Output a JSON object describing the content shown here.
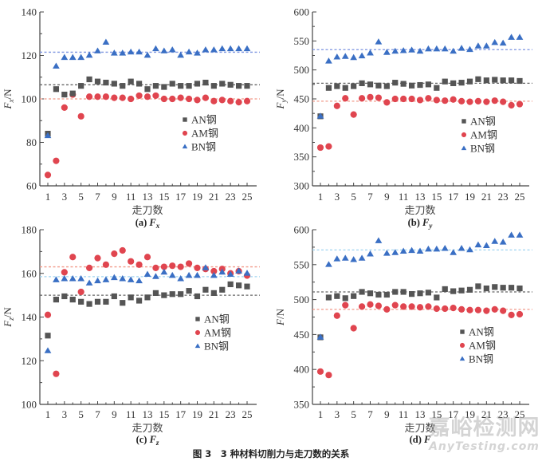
{
  "figure_caption": "图 3　3 种材料切削力与走刀数的关系",
  "watermark": {
    "cn": "嘉峪检测网",
    "en": "AnyTesting.com"
  },
  "colors": {
    "AN": "#555555",
    "AM": "#e0454f",
    "BN": "#3a6fc4",
    "AN_line": "#666666",
    "AM_line": "#f29a8a",
    "BN_line_ab": "#7b93e0",
    "BN_line_cd": "#9fd4f0"
  },
  "legend": [
    {
      "key": "AN",
      "label": "AN钢",
      "marker": "square"
    },
    {
      "key": "AM",
      "label": "AM钢",
      "marker": "circle"
    },
    {
      "key": "BN",
      "label": "BN钢",
      "marker": "triangle"
    }
  ],
  "chart_data": [
    {
      "id": "a",
      "type": "scatter",
      "sub_caption": "(a) F",
      "sub_caption_sub": "x",
      "xlabel": "走刀数",
      "ylabel": "F",
      "ylabel_sub": "x",
      "ylabel_unit": "/N",
      "ylim": [
        60,
        140
      ],
      "yticks": [
        60,
        80,
        100,
        120,
        140
      ],
      "xlim": [
        1,
        25
      ],
      "xticks": [
        1,
        3,
        5,
        7,
        9,
        11,
        13,
        15,
        17,
        19,
        21,
        23,
        25
      ],
      "legend_position": "middle-right",
      "grid": false,
      "series": [
        {
          "name": "AN钢",
          "key": "AN",
          "mean": 106.5,
          "values": [
            84,
            104.5,
            102,
            102.5,
            106,
            109,
            108,
            107.5,
            107,
            106,
            108,
            107,
            104.5,
            106,
            105.5,
            107,
            106,
            106,
            107,
            107.5,
            106,
            107,
            106.5,
            106,
            106
          ]
        },
        {
          "name": "AM钢",
          "key": "AM",
          "mean": 100,
          "values": [
            65,
            71.5,
            96,
            102,
            92,
            101,
            101,
            101,
            100.5,
            100.5,
            100,
            101.5,
            101,
            101.5,
            100,
            100,
            100.5,
            100,
            99.5,
            100.5,
            99,
            99.5,
            99,
            98.5,
            99
          ]
        },
        {
          "name": "BN钢",
          "key": "BN",
          "mean": 121.5,
          "values": [
            83,
            115,
            119,
            119,
            119,
            120,
            122,
            126,
            121,
            121,
            121.5,
            121.5,
            120,
            123,
            122,
            122.5,
            120,
            121.5,
            121,
            122.5,
            122.5,
            123,
            123,
            123,
            123
          ]
        }
      ]
    },
    {
      "id": "b",
      "type": "scatter",
      "sub_caption": "(b) F",
      "sub_caption_sub": "y",
      "xlabel": "走刀数",
      "ylabel": "F",
      "ylabel_sub": "y",
      "ylabel_unit": "/N",
      "ylim": [
        300,
        600
      ],
      "yticks": [
        300,
        350,
        400,
        450,
        500,
        550,
        600
      ],
      "xlim": [
        1,
        25
      ],
      "xticks": [
        1,
        3,
        5,
        7,
        9,
        11,
        13,
        15,
        17,
        19,
        21,
        23,
        25
      ],
      "legend_position": "middle-right",
      "grid": false,
      "series": [
        {
          "name": "AN钢",
          "key": "AN",
          "mean": 477,
          "values": [
            420,
            469,
            472,
            469,
            472,
            477,
            475,
            473,
            472,
            478,
            476,
            473,
            474,
            475,
            469,
            480,
            477,
            478,
            480,
            484,
            482,
            483,
            482,
            482,
            481
          ]
        },
        {
          "name": "AM钢",
          "key": "AM",
          "mean": 446,
          "values": [
            366,
            368,
            438,
            451,
            423,
            451,
            453,
            452,
            444,
            450,
            450,
            450,
            448,
            451,
            448,
            447,
            449,
            446,
            445,
            446,
            445,
            447,
            445,
            439,
            441
          ]
        },
        {
          "name": "BN钢",
          "key": "BN",
          "mean": 535,
          "values": [
            420,
            515,
            522,
            523,
            521,
            524,
            529,
            548,
            530,
            532,
            533,
            534,
            532,
            536,
            536,
            536,
            532,
            537,
            535,
            541,
            541,
            547,
            546,
            556,
            556
          ]
        }
      ]
    },
    {
      "id": "c",
      "type": "scatter",
      "sub_caption": "(c) F",
      "sub_caption_sub": "z",
      "xlabel": "走刀数",
      "ylabel": "F",
      "ylabel_sub": "z",
      "ylabel_unit": "/N",
      "ylim": [
        100,
        180
      ],
      "yticks": [
        100,
        120,
        140,
        160,
        180
      ],
      "xlim": [
        1,
        25
      ],
      "xticks": [
        1,
        3,
        5,
        7,
        9,
        11,
        13,
        15,
        17,
        19,
        21,
        23,
        25
      ],
      "legend_position": "middle-right",
      "grid": false,
      "series": [
        {
          "name": "AN钢",
          "key": "AN",
          "mean": 150,
          "values": [
            131.5,
            148,
            149.5,
            148,
            147,
            146,
            147,
            147,
            149.5,
            146.5,
            149,
            147.5,
            149,
            151,
            150,
            150.5,
            150.5,
            152,
            149.5,
            152.5,
            151,
            152.5,
            155,
            154.5,
            154
          ]
        },
        {
          "name": "AM钢",
          "key": "AM",
          "mean": 163,
          "values": [
            141,
            114,
            160.5,
            167.5,
            151.5,
            162.5,
            167,
            164,
            169,
            170.5,
            165.5,
            164,
            167.5,
            162.5,
            163,
            163.5,
            163,
            164.5,
            162.5,
            162,
            161,
            162,
            160,
            161,
            159
          ]
        },
        {
          "name": "BN钢",
          "key": "BN",
          "mean": 158.5,
          "values": [
            124.5,
            157,
            157.5,
            157.5,
            157.5,
            155.5,
            156.5,
            157,
            158,
            157.5,
            157,
            156.5,
            159.5,
            158.5,
            160.5,
            159,
            157.5,
            159,
            159,
            162.5,
            159,
            160.5,
            159.5,
            161,
            160
          ]
        }
      ]
    },
    {
      "id": "d",
      "type": "scatter",
      "sub_caption": "(d) F",
      "sub_caption_sub": "",
      "xlabel": "走刀数",
      "ylabel": "F",
      "ylabel_sub": "",
      "ylabel_unit": "/N",
      "ylim": [
        350,
        600
      ],
      "yticks": [
        350,
        400,
        450,
        500,
        550,
        600
      ],
      "xlim": [
        1,
        25
      ],
      "xticks": [
        1,
        3,
        5,
        7,
        9,
        11,
        13,
        15,
        17,
        19,
        21,
        23,
        25
      ],
      "legend_position": "middle-right",
      "grid": false,
      "series": [
        {
          "name": "AN钢",
          "key": "AN",
          "mean": 511,
          "values": [
            446,
            503,
            505,
            502,
            505,
            511,
            509,
            507,
            507,
            511,
            511,
            508,
            509,
            510,
            503,
            515,
            512,
            513,
            514,
            519,
            516,
            518,
            517,
            517,
            516
          ]
        },
        {
          "name": "AM钢",
          "key": "AM",
          "mean": 486,
          "values": [
            397,
            392,
            477,
            492,
            459,
            490,
            493,
            491,
            486,
            492,
            490,
            490,
            489,
            490,
            487,
            487,
            488,
            486,
            485,
            485,
            484,
            486,
            484,
            478,
            479
          ]
        },
        {
          "name": "BN钢",
          "key": "BN",
          "mean": 571,
          "values": [
            446,
            550,
            558,
            559,
            557,
            559,
            565,
            584,
            566,
            567,
            569,
            570,
            569,
            572,
            572,
            573,
            567,
            573,
            571,
            578,
            577,
            583,
            582,
            592,
            592
          ]
        }
      ]
    }
  ]
}
